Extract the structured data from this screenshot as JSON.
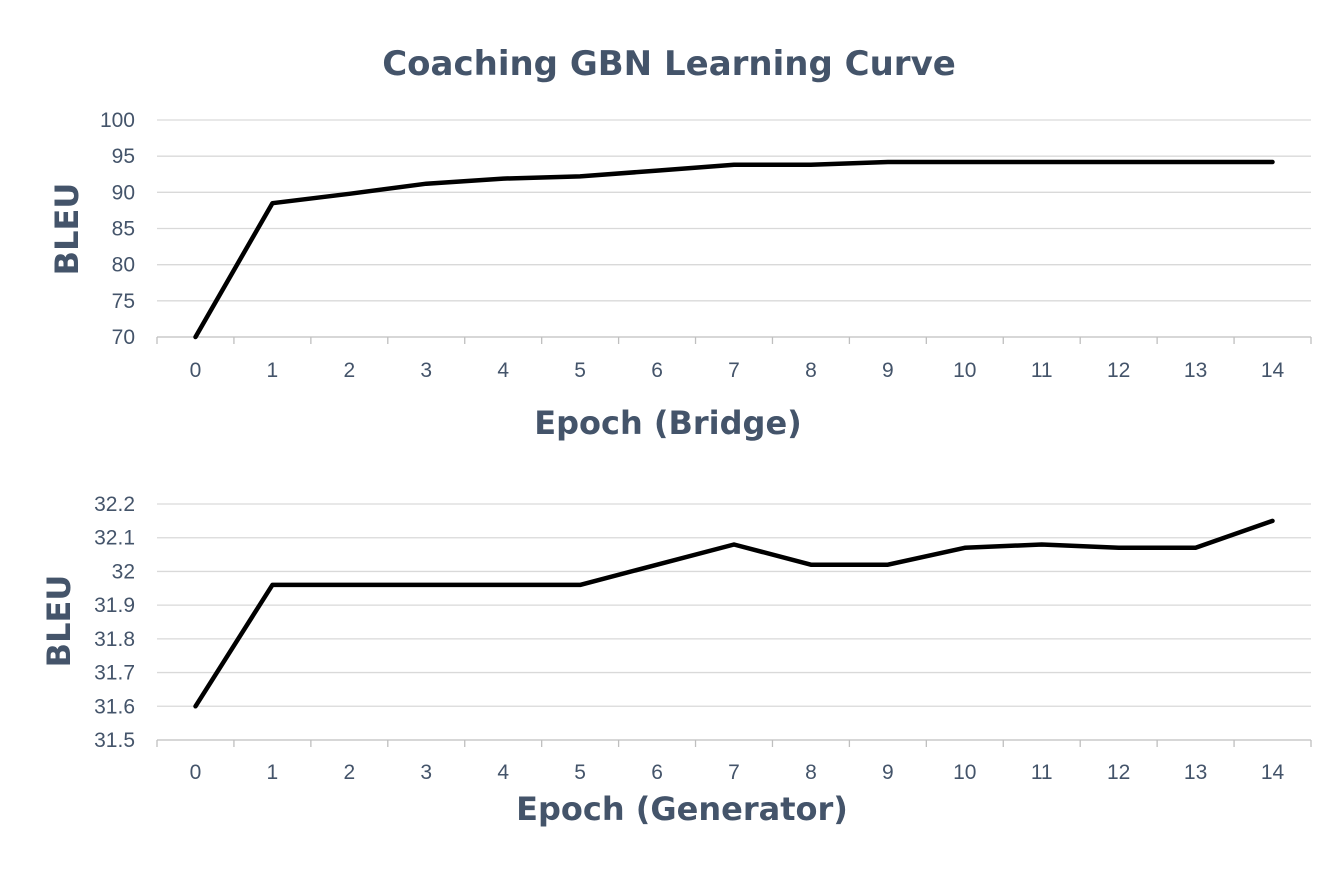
{
  "title": "Coaching GBN Learning Curve",
  "chart_data": [
    {
      "type": "line",
      "title": "Coaching GBN Learning Curve",
      "xlabel": "Epoch (Bridge)",
      "ylabel": "BLEU",
      "categories": [
        "0",
        "1",
        "2",
        "3",
        "4",
        "5",
        "6",
        "7",
        "8",
        "9",
        "10",
        "11",
        "12",
        "13",
        "14"
      ],
      "values": [
        70,
        88.5,
        89.8,
        91.2,
        91.9,
        92.2,
        93.0,
        93.8,
        93.8,
        94.2,
        94.2,
        94.2,
        94.2,
        94.2,
        94.2
      ],
      "ylim": [
        70,
        100
      ],
      "yticks": [
        "70",
        "75",
        "80",
        "85",
        "90",
        "95",
        "100"
      ],
      "grid": true,
      "line_color": "#000000"
    },
    {
      "type": "line",
      "xlabel": "Epoch (Generator)",
      "ylabel": "BLEU",
      "categories": [
        "0",
        "1",
        "2",
        "3",
        "4",
        "5",
        "6",
        "7",
        "8",
        "9",
        "10",
        "11",
        "12",
        "13",
        "14"
      ],
      "values": [
        31.6,
        31.96,
        31.96,
        31.96,
        31.96,
        31.96,
        32.02,
        32.08,
        32.02,
        32.02,
        32.07,
        32.08,
        32.07,
        32.07,
        32.15
      ],
      "ylim": [
        31.5,
        32.2
      ],
      "yticks": [
        "31.5",
        "31.6",
        "31.7",
        "31.8",
        "31.9",
        "32",
        "32.1",
        "32.2"
      ],
      "grid": true,
      "line_color": "#000000"
    }
  ]
}
